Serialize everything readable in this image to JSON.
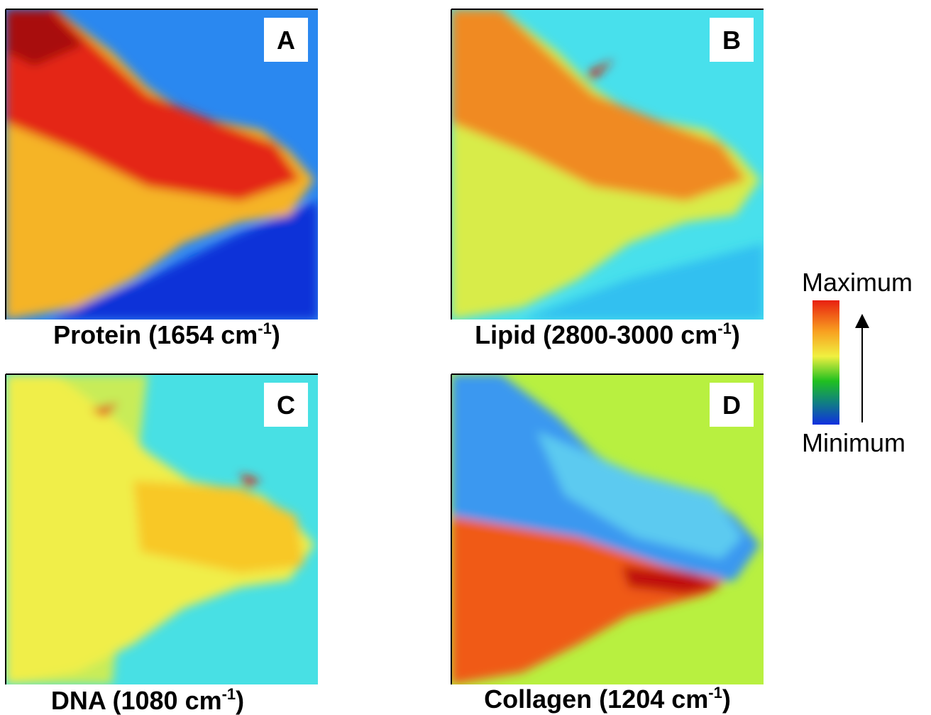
{
  "panels": [
    {
      "letter": "A",
      "caption": {
        "text": "Protein (1654 cm",
        "sup": "-1",
        "end": ")"
      }
    },
    {
      "letter": "B",
      "caption": {
        "text": "Lipid (2800-3000 cm",
        "sup": "-1",
        "end": ")"
      }
    },
    {
      "letter": "C",
      "caption": {
        "text": "DNA (1080 cm",
        "sup": "-1",
        "end": ")"
      }
    },
    {
      "letter": "D",
      "caption": {
        "text": "Collagen (1204 cm",
        "sup": "-1",
        "end": ")"
      }
    }
  ],
  "colorbar": {
    "max_label": "Maximum",
    "min_label": "Minimum"
  }
}
